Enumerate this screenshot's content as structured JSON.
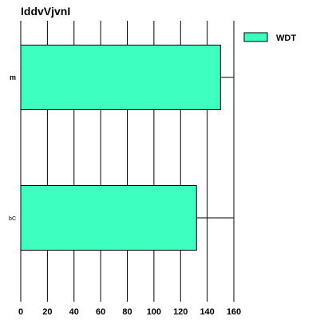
{
  "chart_data": {
    "type": "bar",
    "orientation": "horizontal",
    "title": "IddvVjvnI",
    "categories": [
      "m",
      "bC"
    ],
    "series": [
      {
        "name": "WDT",
        "values": [
          150,
          132
        ],
        "color": "#3dffc0"
      }
    ],
    "xlim": [
      0,
      160
    ],
    "xticks": [
      0,
      20,
      40,
      60,
      80,
      100,
      120,
      140,
      160
    ],
    "xlabel": "",
    "ylabel": "",
    "grid": "vertical",
    "legend": {
      "position": "top-right"
    }
  }
}
